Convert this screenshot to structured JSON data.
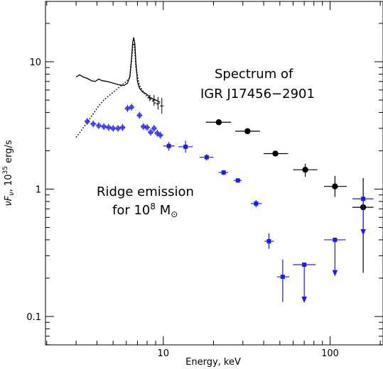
{
  "chart_data": {
    "type": "scatter",
    "title": "",
    "xlabel": "Energy, keV",
    "ylabel_main": "νF",
    "ylabel_sub": "ν",
    "ylabel_rest": ", 10",
    "ylabel_exp": "35",
    "ylabel_unit": " erg/s",
    "x_scale": "log",
    "y_scale": "log",
    "xlim": [
      2,
      220
    ],
    "ylim": [
      0.06,
      30
    ],
    "grid": false,
    "x_tick_labels": [
      {
        "value": 10,
        "label": "10"
      },
      {
        "value": 100,
        "label": "100"
      }
    ],
    "y_tick_labels": [
      {
        "value": 0.1,
        "label": "0.1"
      },
      {
        "value": 1,
        "label": "1"
      },
      {
        "value": 10,
        "label": "10"
      }
    ],
    "annotations": {
      "spectrum_line1": "Spectrum of",
      "spectrum_line2": "IGR J17456−2901",
      "ridge_line1": "Ridge emission",
      "ridge_line2_pre": "for 10",
      "ridge_line2_exp": "8",
      "ridge_line2_post": " M",
      "ridge_line2_sym": "⊙"
    },
    "series": [
      {
        "color": "#000000",
        "marker": "circle",
        "points": [
          {
            "x": 21.5,
            "y": 3.35,
            "xlo": 18,
            "xhi": 25.5,
            "ylo": 3.2,
            "yhi": 3.5
          },
          {
            "x": 32,
            "y": 2.85,
            "xlo": 27,
            "xhi": 38,
            "ylo": 2.75,
            "yhi": 2.95
          },
          {
            "x": 47,
            "y": 1.9,
            "xlo": 40,
            "xhi": 56,
            "ylo": 1.83,
            "yhi": 1.97
          },
          {
            "x": 71,
            "y": 1.42,
            "xlo": 60,
            "xhi": 84,
            "ylo": 1.25,
            "yhi": 1.58
          },
          {
            "x": 107,
            "y": 1.05,
            "xlo": 92,
            "xhi": 126,
            "ylo": 0.87,
            "yhi": 1.27
          },
          {
            "x": 158,
            "y": 0.72,
            "xlo": 136,
            "xhi": 182,
            "ylo": 0.22,
            "yhi": 1.22
          }
        ]
      },
      {
        "color": "#1a1aff",
        "marker": "square",
        "points": [
          {
            "x": 10.8,
            "y": 2.18,
            "xlo": 10,
            "xhi": 11.7,
            "ylo": 2.0,
            "yhi": 2.35
          },
          {
            "x": 13.6,
            "y": 2.15,
            "xlo": 12.3,
            "xhi": 15,
            "ylo": 1.93,
            "yhi": 2.4
          },
          {
            "x": 18.2,
            "y": 1.78,
            "xlo": 16.5,
            "xhi": 20,
            "ylo": 1.68,
            "yhi": 1.88
          },
          {
            "x": 23,
            "y": 1.35,
            "xlo": 21.5,
            "xhi": 24.5,
            "ylo": 1.29,
            "yhi": 1.41
          },
          {
            "x": 28,
            "y": 1.17,
            "xlo": 26.5,
            "xhi": 29.5,
            "ylo": 1.13,
            "yhi": 1.21
          },
          {
            "x": 36,
            "y": 0.77,
            "xlo": 33.5,
            "xhi": 39,
            "ylo": 0.72,
            "yhi": 0.82
          },
          {
            "x": 43,
            "y": 0.39,
            "xlo": 40.5,
            "xhi": 46,
            "ylo": 0.34,
            "yhi": 0.45
          },
          {
            "x": 52,
            "y": 0.205,
            "xlo": 48,
            "xhi": 57,
            "ylo": 0.13,
            "yhi": 0.28
          },
          {
            "x": 70,
            "y": 0.255,
            "xlo": 60,
            "xhi": 82,
            "upper_limit": true,
            "arrow_to": 0.13
          },
          {
            "x": 107,
            "y": 0.4,
            "xlo": 92,
            "xhi": 124,
            "upper_limit": true,
            "arrow_to": 0.21
          },
          {
            "x": 158,
            "y": 0.84,
            "xlo": 136,
            "xhi": 182,
            "upper_limit": true,
            "arrow_to": 0.44
          }
        ]
      }
    ],
    "ridge_soft_blue": {
      "color": "#1a1aff",
      "points": [
        {
          "x": 3.5,
          "y": 3.4
        },
        {
          "x": 3.8,
          "y": 3.25
        },
        {
          "x": 4.1,
          "y": 3.15
        },
        {
          "x": 4.4,
          "y": 3.1
        },
        {
          "x": 4.7,
          "y": 3.05
        },
        {
          "x": 5.0,
          "y": 3.0
        },
        {
          "x": 5.35,
          "y": 3.0
        },
        {
          "x": 5.7,
          "y": 3.05
        },
        {
          "x": 6.1,
          "y": 4.3
        },
        {
          "x": 6.45,
          "y": 4.4
        },
        {
          "x": 7.2,
          "y": 3.8
        },
        {
          "x": 7.6,
          "y": 3.1
        },
        {
          "x": 8.0,
          "y": 3.05
        },
        {
          "x": 8.4,
          "y": 2.8
        },
        {
          "x": 8.8,
          "y": 3.0
        },
        {
          "x": 9.2,
          "y": 2.75
        },
        {
          "x": 9.6,
          "y": 2.65
        }
      ]
    },
    "dotted_curve": {
      "color": "#000000",
      "points": [
        {
          "x": 3.0,
          "y": 2.55
        },
        {
          "x": 3.2,
          "y": 2.85
        },
        {
          "x": 3.5,
          "y": 3.35
        },
        {
          "x": 3.8,
          "y": 3.9
        },
        {
          "x": 4.1,
          "y": 4.5
        },
        {
          "x": 4.4,
          "y": 5.0
        },
        {
          "x": 4.8,
          "y": 5.5
        },
        {
          "x": 5.2,
          "y": 6.0
        },
        {
          "x": 5.6,
          "y": 6.5
        },
        {
          "x": 6.0,
          "y": 7.0
        },
        {
          "x": 6.3,
          "y": 7.5
        },
        {
          "x": 6.55,
          "y": 13
        },
        {
          "x": 6.7,
          "y": 14
        },
        {
          "x": 6.85,
          "y": 9
        },
        {
          "x": 7.2,
          "y": 6.5
        },
        {
          "x": 7.8,
          "y": 5.5
        },
        {
          "x": 8.5,
          "y": 5.0
        },
        {
          "x": 9.2,
          "y": 4.6
        }
      ]
    },
    "solid_curve": {
      "color": "#000000",
      "points": [
        {
          "x": 3.0,
          "y": 7.6
        },
        {
          "x": 3.15,
          "y": 7.9
        },
        {
          "x": 3.3,
          "y": 7.6
        },
        {
          "x": 3.5,
          "y": 7.4
        },
        {
          "x": 3.7,
          "y": 7.1
        },
        {
          "x": 3.9,
          "y": 7.0
        },
        {
          "x": 4.1,
          "y": 7.3
        },
        {
          "x": 4.3,
          "y": 7.1
        },
        {
          "x": 4.6,
          "y": 7.0
        },
        {
          "x": 5.0,
          "y": 6.8
        },
        {
          "x": 5.4,
          "y": 6.6
        },
        {
          "x": 5.8,
          "y": 6.5
        },
        {
          "x": 6.1,
          "y": 6.8
        },
        {
          "x": 6.3,
          "y": 7.6
        },
        {
          "x": 6.45,
          "y": 10.5
        },
        {
          "x": 6.55,
          "y": 14
        },
        {
          "x": 6.65,
          "y": 15.5
        },
        {
          "x": 6.75,
          "y": 14
        },
        {
          "x": 6.85,
          "y": 10
        },
        {
          "x": 7.0,
          "y": 7.0
        },
        {
          "x": 7.2,
          "y": 6.2
        },
        {
          "x": 7.5,
          "y": 5.8
        },
        {
          "x": 7.9,
          "y": 5.6
        },
        {
          "x": 8.4,
          "y": 5.2
        },
        {
          "x": 9.0,
          "y": 5.0
        },
        {
          "x": 9.6,
          "y": 4.8
        }
      ]
    },
    "black_crosses": [
      {
        "x": 8.3,
        "y": 5.2,
        "xlo": 8.0,
        "xhi": 8.6,
        "ylo": 4.9,
        "yhi": 5.5
      },
      {
        "x": 8.8,
        "y": 5.0,
        "xlo": 8.6,
        "xhi": 9.0,
        "ylo": 4.5,
        "yhi": 5.5
      },
      {
        "x": 9.3,
        "y": 4.7,
        "xlo": 9.05,
        "xhi": 9.55,
        "ylo": 4.2,
        "yhi": 5.3
      },
      {
        "x": 9.8,
        "y": 4.5,
        "xlo": 9.55,
        "xhi": 10.05,
        "ylo": 3.9,
        "yhi": 5.2
      }
    ]
  }
}
